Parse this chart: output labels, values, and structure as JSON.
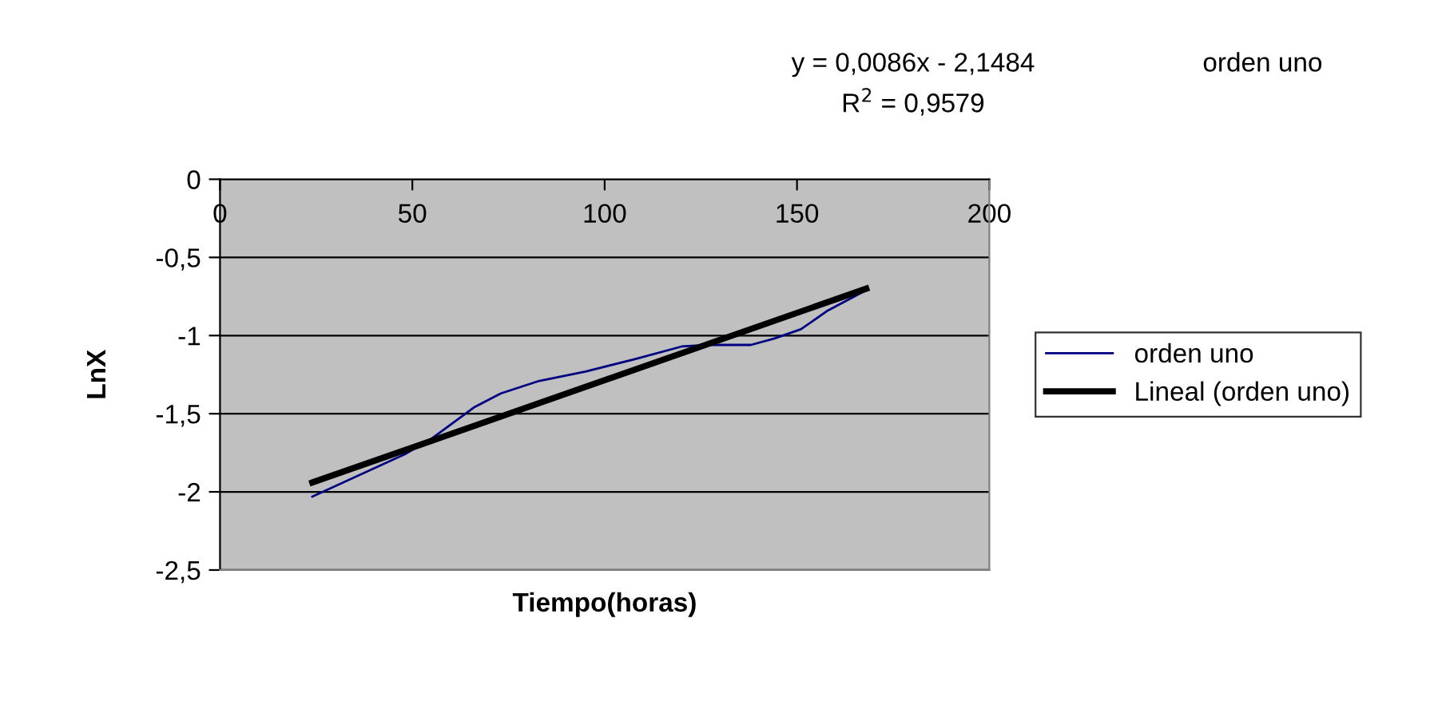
{
  "chart_data": {
    "type": "line",
    "title": "orden uno",
    "xlabel": "Tiempo(horas)",
    "ylabel": "LnX",
    "annotations": [
      "y = 0,0086x - 2,1484",
      "R$^{2}$ = 0,9579"
    ],
    "xlim": [
      0,
      200
    ],
    "xticks": [
      0,
      50,
      100,
      150,
      200
    ],
    "ylim": [
      -2.5,
      0
    ],
    "yticks": [
      0,
      {
        "value": -0.5,
        "label": "-0,5"
      },
      -1,
      {
        "value": -1.5,
        "label": "-1,5"
      },
      -2,
      {
        "value": -2.5,
        "label": "-2,5"
      }
    ],
    "grid": "y",
    "legend": "right",
    "marker": "none",
    "line_style": "solid",
    "series": [
      {
        "name": "orden uno",
        "color": "#000080",
        "x": [
          24,
          48,
          55,
          66,
          73,
          83,
          95,
          108,
          120,
          127,
          138,
          144,
          151,
          158,
          168
        ],
        "values": [
          -2.03,
          -1.76,
          -1.66,
          -1.46,
          -1.37,
          -1.29,
          -1.23,
          -1.15,
          -1.07,
          -1.06,
          -1.06,
          -1.02,
          -0.96,
          -0.84,
          -0.71
        ]
      },
      {
        "name": "Lineal (orden uno)",
        "color": "#000000",
        "x": [
          24,
          168
        ],
        "values": [
          -1.94,
          -0.7
        ]
      }
    ]
  }
}
